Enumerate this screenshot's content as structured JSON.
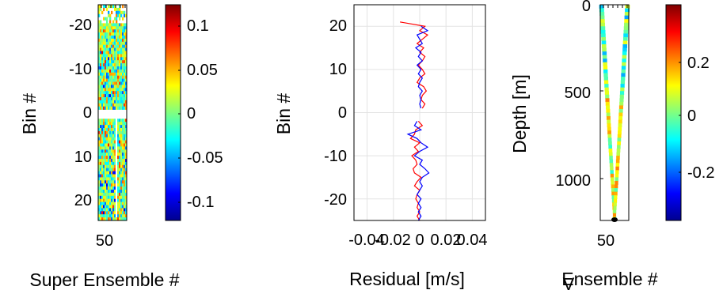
{
  "chart_data": [
    {
      "type": "heatmap",
      "xlabel": "Super Ensemble #",
      "ylabel": "Bin #",
      "x_ticks": [
        "50"
      ],
      "y_ticks": [
        "-20",
        "-10",
        "0",
        "10",
        "20"
      ],
      "ylim": [
        -25,
        25
      ],
      "y_reversed": true,
      "colorbar": {
        "colormap": "jet",
        "clim": [
          -0.12,
          0.12
        ],
        "ticks": [
          "0.1",
          "0.05",
          "0",
          "-0.05",
          "-0.1"
        ]
      }
    },
    {
      "type": "line",
      "xlabel": "Residual [m/s]",
      "ylabel": "Bin #",
      "x_ticks": [
        "-0.04",
        "-0.02",
        "0",
        "0.02",
        "0.04"
      ],
      "y_ticks": [
        "20",
        "10",
        "0",
        "-10",
        "-20"
      ],
      "xlim": [
        -0.05,
        0.05
      ],
      "ylim": [
        -25,
        25
      ],
      "grid": true,
      "series": [
        {
          "color": "#ff0000",
          "y": [
            21,
            20,
            19,
            18,
            17,
            16,
            15,
            14,
            13,
            12,
            11,
            10,
            9,
            8,
            7,
            6,
            5,
            4,
            3,
            2,
            1,
            -2,
            -3,
            -4,
            -5,
            -6,
            -7,
            -8,
            -9,
            -10,
            -11,
            -12,
            -13,
            -14,
            -15,
            -16,
            -17,
            -18,
            -19,
            -20,
            -21,
            -22,
            -23,
            -24,
            -25
          ],
          "x": [
            -0.015,
            0.004,
            0.0,
            0.006,
            0.002,
            -0.002,
            0.003,
            0.0,
            0.004,
            0.002,
            -0.001,
            0.002,
            0.004,
            0.0,
            -0.002,
            0.003,
            0.005,
            0.002,
            0.001,
            0.004,
            0.002,
            -0.001,
            0.002,
            -0.003,
            -0.004,
            -0.007,
            0.0,
            -0.004,
            -0.001,
            -0.006,
            -0.003,
            -0.002,
            -0.005,
            -0.004,
            0.001,
            -0.002,
            -0.004,
            0.0,
            -0.002,
            -0.003,
            -0.001,
            -0.002,
            0.0,
            -0.002,
            0.0
          ]
        },
        {
          "color": "#0000ff",
          "y": [
            20,
            19,
            18,
            17,
            16,
            15,
            14,
            13,
            12,
            11,
            10,
            9,
            8,
            7,
            6,
            5,
            4,
            3,
            2,
            1,
            -2,
            -3,
            -4,
            -5,
            -6,
            -7,
            -8,
            -9,
            -10,
            -11,
            -12,
            -13,
            -14,
            -15,
            -16,
            -17,
            -18,
            -19,
            -20,
            -21,
            -22,
            -23,
            -24,
            -25
          ],
          "x": [
            0.001,
            0.006,
            -0.002,
            0.0,
            0.002,
            -0.003,
            0.001,
            -0.001,
            0.002,
            -0.002,
            0.001,
            -0.001,
            0.002,
            0.0,
            -0.001,
            0.002,
            0.0,
            0.001,
            0.0,
            0.001,
            -0.002,
            -0.004,
            0.001,
            -0.009,
            -0.002,
            0.001,
            0.006,
            0.0,
            -0.004,
            0.002,
            0.0,
            0.004,
            0.007,
            0.002,
            0.0,
            0.002,
            0.0,
            -0.002,
            0.001,
            -0.001,
            0.001,
            -0.001,
            0.001,
            -0.001
          ]
        }
      ]
    },
    {
      "type": "heatmap",
      "xlabel": "Ensemble #",
      "ylabel": "Depth [m]",
      "x_ticks": [
        "50"
      ],
      "y_ticks": [
        "0",
        "500",
        "1000"
      ],
      "ylim": [
        0,
        1230
      ],
      "y_reversed": true,
      "colorbar": {
        "colormap": "jet",
        "clim": [
          -0.36,
          0.36
        ],
        "ticks": [
          "0.2",
          "0",
          "-0.2"
        ]
      }
    }
  ],
  "overlay_text": "V"
}
